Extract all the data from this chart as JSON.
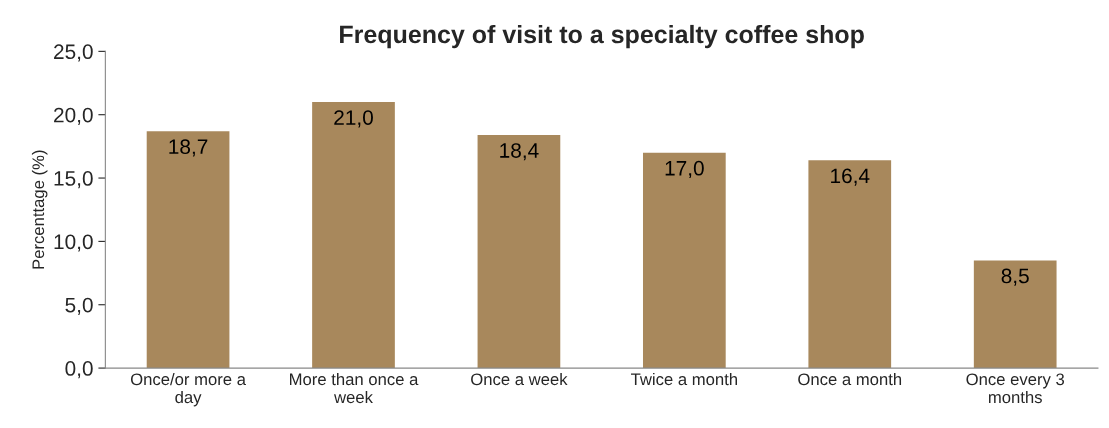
{
  "chart_data": {
    "type": "bar",
    "title": "Frequency of visit to a specialty coffee shop",
    "ylabel": "Percenttage (%)",
    "categories": [
      "Once/or more a\nday",
      "More than once a\nweek",
      "Once a week",
      "Twice a month",
      "Once a month",
      "Once every 3\nmonths"
    ],
    "values": [
      18.7,
      21.0,
      18.4,
      17.0,
      16.4,
      8.5
    ],
    "value_labels": [
      "18,7",
      "21,0",
      "18,4",
      "17,0",
      "16,4",
      "8,5"
    ],
    "color": "#a8885c",
    "ylim": [
      0,
      25
    ],
    "yticks": [
      {
        "value": 0,
        "label": "0,0"
      },
      {
        "value": 5,
        "label": "5,0"
      },
      {
        "value": 10,
        "label": "10,0"
      },
      {
        "value": 15,
        "label": "15,0"
      },
      {
        "value": 20,
        "label": "20,0"
      },
      {
        "value": 25,
        "label": "25,0"
      }
    ],
    "grid": false,
    "legend": false
  }
}
